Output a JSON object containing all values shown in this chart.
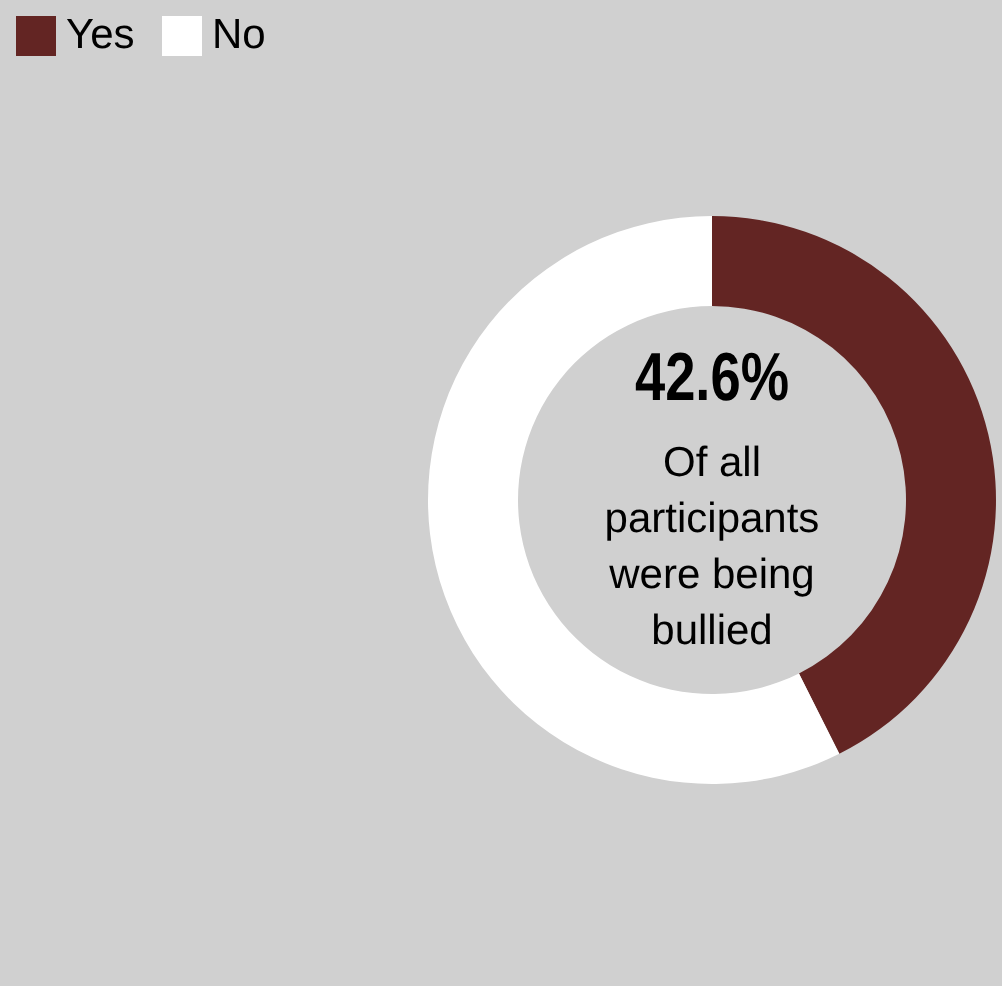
{
  "chart_data": {
    "type": "donut",
    "categories": [
      "Yes",
      "No"
    ],
    "values": [
      42.6,
      57.4
    ],
    "colors": [
      "#632523",
      "#ffffff"
    ],
    "legend": "top left",
    "annotations": [
      "42.6%",
      "Of all participants were being bullied"
    ]
  }
}
